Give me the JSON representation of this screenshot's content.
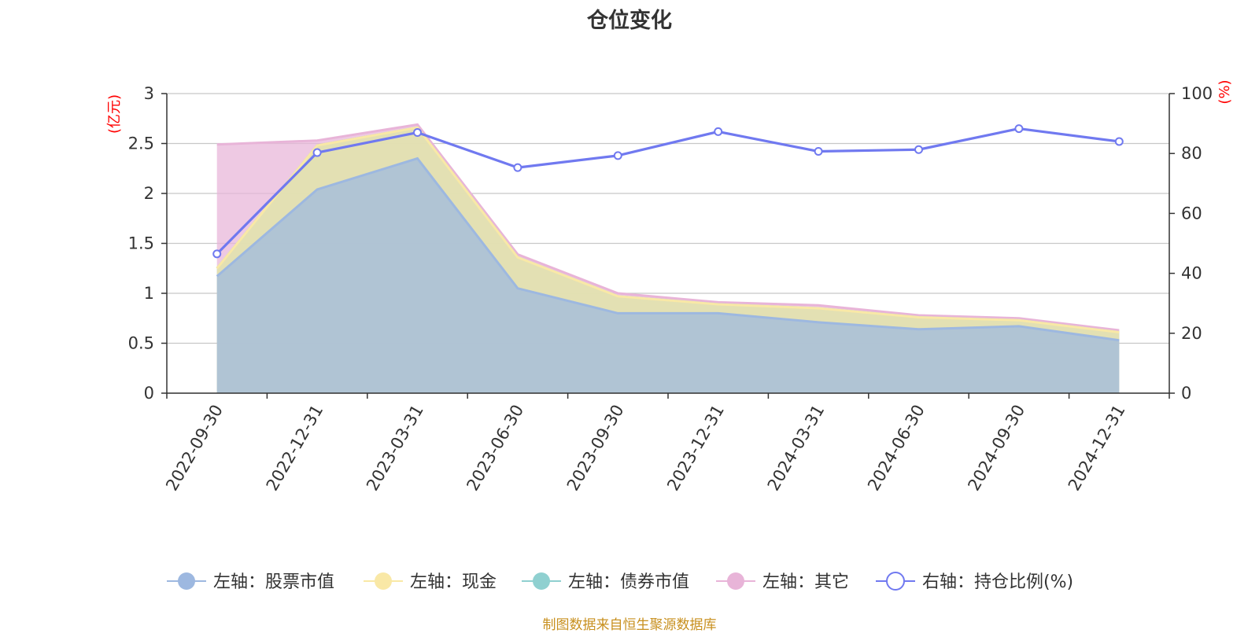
{
  "chart_data": {
    "type": "area",
    "title": "仓位变化",
    "categories": [
      "2022-09-30",
      "2022-12-31",
      "2023-03-31",
      "2023-06-30",
      "2023-09-30",
      "2023-12-31",
      "2024-03-31",
      "2024-06-30",
      "2024-09-30",
      "2024-12-31"
    ],
    "left_axis": {
      "unit": "(亿元)",
      "ylim": [
        0,
        3
      ],
      "ticks": [
        "0",
        "0.5",
        "1",
        "1.5",
        "2",
        "2.5",
        "3"
      ]
    },
    "right_axis": {
      "unit": "(%)",
      "ylim": [
        0,
        100
      ],
      "ticks": [
        "0",
        "20",
        "40",
        "60",
        "80",
        "100"
      ]
    },
    "series": [
      {
        "name": "左轴：股票市值",
        "axis": "left",
        "stack": true,
        "color": "#9db8e0",
        "values": [
          1.17,
          2.04,
          2.35,
          1.05,
          0.8,
          0.8,
          0.71,
          0.64,
          0.67,
          0.53
        ]
      },
      {
        "name": "左轴：现金",
        "axis": "left",
        "stack": true,
        "color": "#f9e8a6",
        "values": [
          0.08,
          0.44,
          0.31,
          0.31,
          0.17,
          0.09,
          0.14,
          0.12,
          0.06,
          0.08
        ]
      },
      {
        "name": "左轴：债券市值",
        "axis": "left",
        "stack": true,
        "color": "#8fd0d0",
        "values": [
          0,
          0,
          0,
          0,
          0,
          0,
          0,
          0,
          0,
          0
        ]
      },
      {
        "name": "左轴：其它",
        "axis": "left",
        "stack": true,
        "color": "#e8b4d8",
        "values": [
          1.24,
          0.05,
          0.03,
          0.03,
          0.03,
          0.02,
          0.03,
          0.02,
          0.02,
          0.02
        ]
      },
      {
        "name": "右轴：持仓比例(%)",
        "axis": "right",
        "type": "line",
        "color": "#7079f0",
        "values": [
          46.5,
          80.3,
          87.0,
          75.3,
          79.3,
          87.3,
          80.7,
          81.3,
          88.3,
          84.0
        ]
      }
    ]
  },
  "source_note": "制图数据来自恒生聚源数据库"
}
